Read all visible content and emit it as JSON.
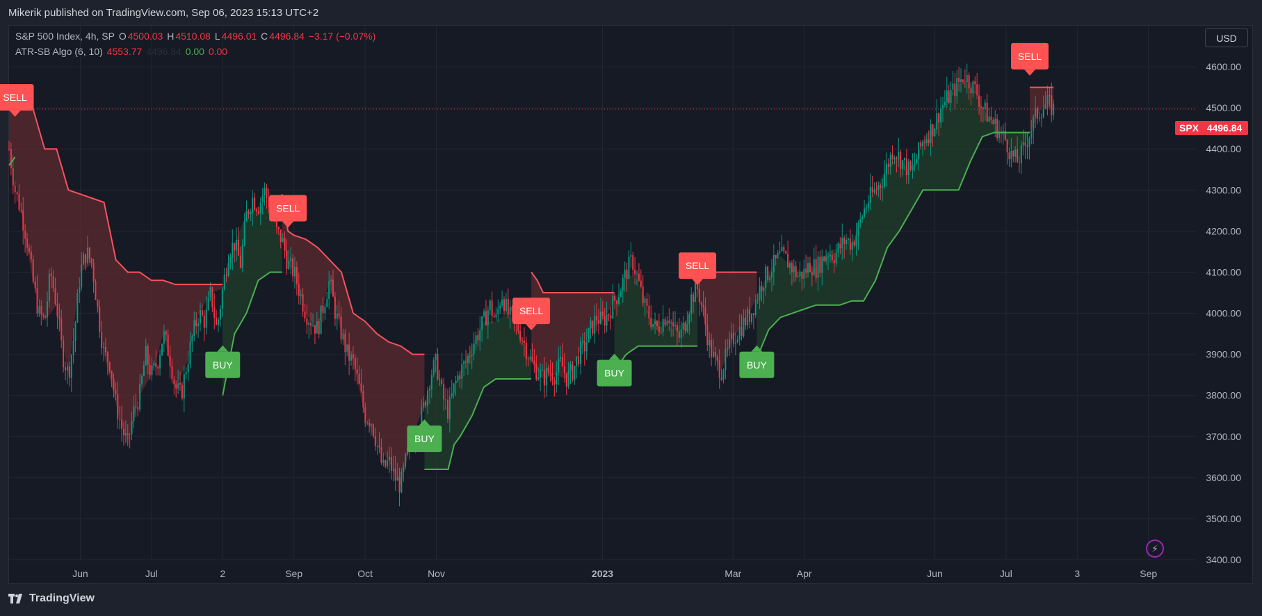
{
  "header": {
    "published": "Mikerik published on TradingView.com, Sep 06, 2023 15:13 UTC+2"
  },
  "legend": {
    "symbol": "S&P 500 Index, 4h, SP",
    "open_label": "O",
    "open": "4500.03",
    "high_label": "H",
    "high": "4510.08",
    "low_label": "L",
    "low": "4496.01",
    "close_label": "C",
    "close": "4496.84",
    "change": "−3.17 (−0.07%)",
    "indicator": "ATR-SB Algo (6, 10)",
    "ind_v1": "4553.77",
    "ind_v2": "4496.84",
    "ind_v3": "0.00",
    "ind_v4": "0.00"
  },
  "toolbar": {
    "currency": "USD"
  },
  "price_tag": {
    "symbol": "SPX",
    "value": "4496.84"
  },
  "footer": {
    "brand": "TradingView"
  },
  "colors": {
    "background": "#161a25",
    "grid": "#232734",
    "up": "#089981",
    "down": "#f23645",
    "sell_line": "#f7525f",
    "buy_line": "#4caf50",
    "sell_fill": "#5c2a2f",
    "buy_fill": "#1f3f2a"
  },
  "chart_data": {
    "type": "line",
    "title": "S&P 500 Index, 4h, SP",
    "xlabel": "",
    "ylabel": "",
    "ylim": [
      3400,
      4700
    ],
    "y_ticks": [
      "3400.00",
      "3500.00",
      "3600.00",
      "3700.00",
      "3800.00",
      "3900.00",
      "4000.00",
      "4100.00",
      "4200.00",
      "4300.00",
      "4400.00",
      "4500.00",
      "4600.00"
    ],
    "x_labels": [
      "Jun",
      "Jul",
      "2",
      "Sep",
      "Oct",
      "Nov",
      "2023",
      "Mar",
      "Apr",
      "Jun",
      "Jul",
      "3",
      "Sep"
    ],
    "x_label_positions": [
      0.06,
      0.12,
      0.18,
      0.24,
      0.3,
      0.36,
      0.5,
      0.61,
      0.67,
      0.78,
      0.84,
      0.9,
      0.96
    ],
    "price_series": {
      "name": "S&P 500 Index",
      "points": [
        [
          0.0,
          4400
        ],
        [
          0.005,
          4300
        ],
        [
          0.01,
          4250
        ],
        [
          0.015,
          4180
        ],
        [
          0.02,
          4080
        ],
        [
          0.025,
          4000
        ],
        [
          0.03,
          3980
        ],
        [
          0.035,
          4100
        ],
        [
          0.04,
          4020
        ],
        [
          0.045,
          3900
        ],
        [
          0.05,
          3850
        ],
        [
          0.055,
          3950
        ],
        [
          0.06,
          4100
        ],
        [
          0.065,
          4150
        ],
        [
          0.07,
          4120
        ],
        [
          0.075,
          4000
        ],
        [
          0.08,
          3900
        ],
        [
          0.085,
          3880
        ],
        [
          0.09,
          3780
        ],
        [
          0.095,
          3720
        ],
        [
          0.1,
          3680
        ],
        [
          0.105,
          3760
        ],
        [
          0.11,
          3800
        ],
        [
          0.115,
          3900
        ],
        [
          0.12,
          3850
        ],
        [
          0.125,
          3880
        ],
        [
          0.13,
          3950
        ],
        [
          0.135,
          3900
        ],
        [
          0.14,
          3820
        ],
        [
          0.145,
          3800
        ],
        [
          0.15,
          3880
        ],
        [
          0.155,
          3950
        ],
        [
          0.16,
          4000
        ],
        [
          0.165,
          3980
        ],
        [
          0.17,
          4050
        ],
        [
          0.175,
          3960
        ],
        [
          0.18,
          4060
        ],
        [
          0.185,
          4150
        ],
        [
          0.19,
          4170
        ],
        [
          0.195,
          4120
        ],
        [
          0.2,
          4240
        ],
        [
          0.205,
          4280
        ],
        [
          0.21,
          4260
        ],
        [
          0.215,
          4300
        ],
        [
          0.22,
          4260
        ],
        [
          0.225,
          4200
        ],
        [
          0.23,
          4180
        ],
        [
          0.235,
          4120
        ],
        [
          0.24,
          4100
        ],
        [
          0.245,
          4050
        ],
        [
          0.25,
          4000
        ],
        [
          0.255,
          3980
        ],
        [
          0.26,
          3960
        ],
        [
          0.265,
          4020
        ],
        [
          0.27,
          4080
        ],
        [
          0.275,
          4000
        ],
        [
          0.28,
          3950
        ],
        [
          0.285,
          3900
        ],
        [
          0.29,
          3880
        ],
        [
          0.295,
          3820
        ],
        [
          0.3,
          3750
        ],
        [
          0.305,
          3740
        ],
        [
          0.31,
          3680
        ],
        [
          0.315,
          3620
        ],
        [
          0.32,
          3640
        ],
        [
          0.325,
          3600
        ],
        [
          0.33,
          3580
        ],
        [
          0.335,
          3650
        ],
        [
          0.34,
          3700
        ],
        [
          0.345,
          3720
        ],
        [
          0.35,
          3780
        ],
        [
          0.355,
          3850
        ],
        [
          0.36,
          3880
        ],
        [
          0.365,
          3800
        ],
        [
          0.37,
          3760
        ],
        [
          0.375,
          3820
        ],
        [
          0.38,
          3860
        ],
        [
          0.385,
          3880
        ],
        [
          0.39,
          3920
        ],
        [
          0.395,
          3950
        ],
        [
          0.4,
          3980
        ],
        [
          0.405,
          4020
        ],
        [
          0.41,
          3980
        ],
        [
          0.415,
          4050
        ],
        [
          0.42,
          4000
        ],
        [
          0.425,
          3980
        ],
        [
          0.43,
          3960
        ],
        [
          0.435,
          3920
        ],
        [
          0.44,
          3880
        ],
        [
          0.445,
          3860
        ],
        [
          0.45,
          3840
        ],
        [
          0.455,
          3860
        ],
        [
          0.46,
          3850
        ],
        [
          0.465,
          3880
        ],
        [
          0.47,
          3840
        ],
        [
          0.475,
          3860
        ],
        [
          0.48,
          3900
        ],
        [
          0.485,
          3920
        ],
        [
          0.49,
          3960
        ],
        [
          0.495,
          3990
        ],
        [
          0.5,
          3980
        ],
        [
          0.505,
          4000
        ],
        [
          0.51,
          4030
        ],
        [
          0.515,
          4060
        ],
        [
          0.52,
          4100
        ],
        [
          0.525,
          4130
        ],
        [
          0.53,
          4080
        ],
        [
          0.535,
          4020
        ],
        [
          0.54,
          3990
        ],
        [
          0.545,
          3960
        ],
        [
          0.55,
          3980
        ],
        [
          0.555,
          4000
        ],
        [
          0.56,
          3960
        ],
        [
          0.565,
          3940
        ],
        [
          0.57,
          3980
        ],
        [
          0.575,
          4040
        ],
        [
          0.58,
          4060
        ],
        [
          0.585,
          4000
        ],
        [
          0.59,
          3920
        ],
        [
          0.595,
          3880
        ],
        [
          0.6,
          3860
        ],
        [
          0.605,
          3900
        ],
        [
          0.61,
          3940
        ],
        [
          0.615,
          3960
        ],
        [
          0.62,
          3980
        ],
        [
          0.625,
          4000
        ],
        [
          0.63,
          4040
        ],
        [
          0.635,
          4080
        ],
        [
          0.64,
          4100
        ],
        [
          0.645,
          4120
        ],
        [
          0.65,
          4140
        ],
        [
          0.655,
          4130
        ],
        [
          0.66,
          4110
        ],
        [
          0.665,
          4090
        ],
        [
          0.67,
          4100
        ],
        [
          0.675,
          4120
        ],
        [
          0.68,
          4110
        ],
        [
          0.685,
          4130
        ],
        [
          0.69,
          4150
        ],
        [
          0.695,
          4140
        ],
        [
          0.7,
          4160
        ],
        [
          0.705,
          4180
        ],
        [
          0.71,
          4170
        ],
        [
          0.715,
          4200
        ],
        [
          0.72,
          4250
        ],
        [
          0.725,
          4280
        ],
        [
          0.73,
          4300
        ],
        [
          0.735,
          4320
        ],
        [
          0.74,
          4360
        ],
        [
          0.745,
          4400
        ],
        [
          0.75,
          4380
        ],
        [
          0.755,
          4360
        ],
        [
          0.76,
          4340
        ],
        [
          0.765,
          4380
        ],
        [
          0.77,
          4420
        ],
        [
          0.775,
          4440
        ],
        [
          0.78,
          4460
        ],
        [
          0.785,
          4500
        ],
        [
          0.79,
          4520
        ],
        [
          0.795,
          4540
        ],
        [
          0.8,
          4560
        ],
        [
          0.805,
          4580
        ],
        [
          0.81,
          4560
        ],
        [
          0.815,
          4540
        ],
        [
          0.82,
          4500
        ],
        [
          0.825,
          4480
        ],
        [
          0.83,
          4460
        ],
        [
          0.835,
          4440
        ],
        [
          0.84,
          4420
        ],
        [
          0.845,
          4380
        ],
        [
          0.85,
          4370
        ],
        [
          0.855,
          4400
        ],
        [
          0.86,
          4440
        ],
        [
          0.865,
          4480
        ],
        [
          0.87,
          4500
        ],
        [
          0.875,
          4510
        ],
        [
          0.88,
          4496.84
        ]
      ]
    },
    "sell_line": {
      "name": "ATR-SB sell stop",
      "segments": [
        [
          [
            0.0,
            4540
          ],
          [
            0.01,
            4540
          ],
          [
            0.02,
            4500
          ],
          [
            0.03,
            4400
          ],
          [
            0.04,
            4400
          ],
          [
            0.05,
            4300
          ],
          [
            0.06,
            4290
          ],
          [
            0.07,
            4280
          ],
          [
            0.08,
            4270
          ],
          [
            0.09,
            4130
          ],
          [
            0.1,
            4100
          ],
          [
            0.11,
            4100
          ],
          [
            0.12,
            4080
          ],
          [
            0.13,
            4080
          ],
          [
            0.14,
            4070
          ],
          [
            0.15,
            4070
          ],
          [
            0.16,
            4070
          ],
          [
            0.17,
            4070
          ],
          [
            0.18,
            4070
          ]
        ],
        [
          [
            0.23,
            4290
          ],
          [
            0.235,
            4200
          ],
          [
            0.24,
            4190
          ],
          [
            0.25,
            4180
          ],
          [
            0.26,
            4160
          ],
          [
            0.27,
            4130
          ],
          [
            0.28,
            4100
          ],
          [
            0.29,
            4000
          ],
          [
            0.3,
            3980
          ],
          [
            0.31,
            3950
          ],
          [
            0.32,
            3930
          ],
          [
            0.33,
            3920
          ],
          [
            0.34,
            3900
          ],
          [
            0.35,
            3900
          ]
        ],
        [
          [
            0.44,
            4100
          ],
          [
            0.445,
            4080
          ],
          [
            0.45,
            4050
          ],
          [
            0.46,
            4050
          ],
          [
            0.47,
            4050
          ],
          [
            0.48,
            4050
          ],
          [
            0.49,
            4050
          ],
          [
            0.5,
            4050
          ],
          [
            0.51,
            4050
          ]
        ],
        [
          [
            0.58,
            4100
          ],
          [
            0.59,
            4100
          ],
          [
            0.6,
            4100
          ],
          [
            0.61,
            4100
          ],
          [
            0.62,
            4100
          ],
          [
            0.63,
            4100
          ]
        ],
        [
          [
            0.86,
            4550
          ],
          [
            0.87,
            4550
          ],
          [
            0.88,
            4550
          ]
        ]
      ]
    },
    "buy_line": {
      "name": "ATR-SB buy stop",
      "segments": [
        [
          [
            0.0,
            4360
          ],
          [
            0.005,
            4380
          ]
        ],
        [
          [
            0.18,
            3800
          ],
          [
            0.19,
            3950
          ],
          [
            0.2,
            4000
          ],
          [
            0.21,
            4080
          ],
          [
            0.22,
            4100
          ],
          [
            0.23,
            4100
          ]
        ],
        [
          [
            0.35,
            3620
          ],
          [
            0.36,
            3620
          ],
          [
            0.37,
            3620
          ],
          [
            0.375,
            3680
          ],
          [
            0.38,
            3700
          ],
          [
            0.39,
            3750
          ],
          [
            0.4,
            3820
          ],
          [
            0.41,
            3840
          ],
          [
            0.42,
            3840
          ],
          [
            0.43,
            3840
          ],
          [
            0.44,
            3840
          ]
        ],
        [
          [
            0.51,
            3840
          ],
          [
            0.515,
            3880
          ],
          [
            0.52,
            3900
          ],
          [
            0.53,
            3920
          ],
          [
            0.54,
            3920
          ],
          [
            0.55,
            3920
          ],
          [
            0.56,
            3920
          ],
          [
            0.57,
            3920
          ],
          [
            0.58,
            3920
          ]
        ],
        [
          [
            0.63,
            3890
          ],
          [
            0.64,
            3960
          ],
          [
            0.65,
            3990
          ],
          [
            0.66,
            4000
          ],
          [
            0.67,
            4010
          ],
          [
            0.68,
            4020
          ],
          [
            0.69,
            4020
          ],
          [
            0.7,
            4020
          ],
          [
            0.71,
            4030
          ],
          [
            0.72,
            4030
          ],
          [
            0.73,
            4080
          ],
          [
            0.74,
            4160
          ],
          [
            0.75,
            4200
          ],
          [
            0.76,
            4250
          ],
          [
            0.77,
            4300
          ],
          [
            0.78,
            4300
          ],
          [
            0.79,
            4300
          ],
          [
            0.8,
            4300
          ],
          [
            0.81,
            4370
          ],
          [
            0.82,
            4430
          ],
          [
            0.83,
            4440
          ],
          [
            0.84,
            4440
          ],
          [
            0.85,
            4440
          ],
          [
            0.86,
            4440
          ]
        ]
      ]
    },
    "signals": [
      {
        "label": "SELL",
        "type": "sell",
        "x": 0.005,
        "y": 4480
      },
      {
        "label": "BUY",
        "type": "buy",
        "x": 0.18,
        "y": 3920
      },
      {
        "label": "SELL",
        "type": "sell",
        "x": 0.235,
        "y": 4210
      },
      {
        "label": "BUY",
        "type": "buy",
        "x": 0.35,
        "y": 3740
      },
      {
        "label": "SELL",
        "type": "sell",
        "x": 0.44,
        "y": 3960
      },
      {
        "label": "BUY",
        "type": "buy",
        "x": 0.51,
        "y": 3900
      },
      {
        "label": "SELL",
        "type": "sell",
        "x": 0.58,
        "y": 4070
      },
      {
        "label": "BUY",
        "type": "buy",
        "x": 0.63,
        "y": 3920
      },
      {
        "label": "SELL",
        "type": "sell",
        "x": 0.86,
        "y": 4580
      }
    ]
  }
}
